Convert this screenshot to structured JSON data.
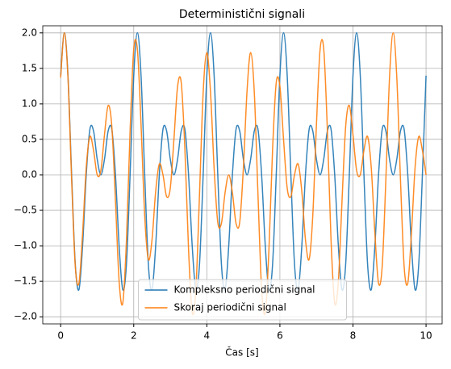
{
  "chart_data": {
    "type": "line",
    "title": "Deterministični signali",
    "x_label": "Čas [s]",
    "x": [
      0,
      0.1,
      0.2,
      0.3,
      0.4,
      0.5,
      0.6,
      0.7,
      0.8,
      0.9,
      1,
      1.1,
      1.2,
      1.3,
      1.4,
      1.5,
      1.6,
      1.7,
      1.8,
      1.9,
      2,
      2.1,
      2.2,
      2.3,
      2.4,
      2.5,
      2.6,
      2.7,
      2.8,
      2.9,
      3,
      3.1,
      3.2,
      3.3,
      3.4,
      3.5,
      3.6,
      3.7,
      3.8,
      3.9,
      4,
      4.1,
      4.2,
      4.3,
      4.4,
      4.5,
      4.6,
      4.7,
      4.8,
      4.9,
      5,
      5.1,
      5.2,
      5.3,
      5.4,
      5.5,
      5.6,
      5.7,
      5.8,
      5.9,
      6,
      6.1,
      6.2,
      6.3,
      6.4,
      6.5,
      6.6,
      6.7,
      6.8,
      6.9,
      7,
      7.1,
      7.2,
      7.3,
      7.4,
      7.5,
      7.6,
      7.7,
      7.8,
      7.9,
      8,
      8.1,
      8.2,
      8.3,
      8.4,
      8.5,
      8.6,
      8.7,
      8.8,
      8.9,
      9,
      9.1,
      9.2,
      9.3,
      9.4,
      9.5,
      9.6,
      9.7,
      9.8,
      9.9,
      10
    ],
    "series": [
      {
        "name": "Kompleksno periodični signal",
        "color": "#1f77b4",
        "values": [
          1.397,
          2,
          1.397,
          0,
          -1.26,
          -1.618,
          -1,
          0,
          0.642,
          0.618,
          0.221,
          0,
          0.221,
          0.618,
          0.642,
          0,
          -1,
          -1.618,
          -1.26,
          0,
          1.397,
          2,
          1.397,
          0,
          -1.26,
          -1.618,
          -1,
          0,
          0.642,
          0.618,
          0.221,
          0,
          0.221,
          0.618,
          0.642,
          0,
          -1,
          -1.618,
          -1.26,
          0,
          1.397,
          2,
          1.397,
          0,
          -1.26,
          -1.618,
          -1,
          0,
          0.642,
          0.618,
          0.221,
          0,
          0.221,
          0.618,
          0.642,
          0,
          -1,
          -1.618,
          -1.26,
          0,
          1.397,
          2,
          1.397,
          0,
          -1.26,
          -1.618,
          -1,
          0,
          0.642,
          0.618,
          0.221,
          0,
          0.221,
          0.618,
          0.642,
          0,
          -1,
          -1.618,
          -1.26,
          0,
          1.397,
          2,
          1.397,
          0,
          -1.26,
          -1.618,
          -1,
          0,
          0.642,
          0.618,
          0.221,
          0,
          0.221,
          0.618,
          0.642,
          0,
          -1,
          -1.618,
          -1.26,
          0,
          1.397
        ]
      },
      {
        "name": "Skoraj periodični signal",
        "color": "#ff7f0e",
        "values": [
          1.368,
          2,
          1.368,
          -0.066,
          -1.287,
          -1.528,
          -0.826,
          0.105,
          0.539,
          0.344,
          0,
          0.06,
          0.567,
          0.978,
          0.681,
          -0.371,
          -1.5,
          -1.807,
          -0.925,
          0.618,
          1.77,
          1.766,
          0.704,
          -0.574,
          -1.192,
          -0.914,
          -0.234,
          0.152,
          0,
          -0.307,
          -0.189,
          0.5,
          1.247,
          1.299,
          0.36,
          -1.051,
          -1.94,
          -1.618,
          -0.274,
          1.157,
          1.723,
          1.174,
          0.09,
          -0.669,
          -0.684,
          -0.25,
          0,
          -0.25,
          -0.684,
          -0.669,
          0.09,
          1.174,
          1.723,
          1.157,
          -0.274,
          -1.618,
          -1.94,
          -1.051,
          0.36,
          1.299,
          1.247,
          0.5,
          -0.189,
          -0.307,
          0,
          0.152,
          -0.234,
          -0.914,
          -1.192,
          -0.574,
          0.704,
          1.766,
          1.77,
          0.618,
          -0.925,
          -1.807,
          -1.5,
          -0.371,
          0.681,
          0.978,
          0.567,
          0.06,
          0,
          0.344,
          0.539,
          0.105,
          -0.826,
          -1.528,
          -1.287,
          -0.066,
          1.368,
          2,
          1.368,
          -0.066,
          -1.287,
          -1.528,
          -0.826,
          0.105,
          0.539,
          0.344,
          0
        ]
      }
    ],
    "xlim": [
      -0.49,
      10.44
    ],
    "ylim": [
      -2.1,
      2.1
    ],
    "xticks": [
      0,
      2,
      4,
      6,
      8,
      10
    ],
    "yticks": [
      {
        "value": -2,
        "label": "−2.0"
      },
      {
        "value": -1.5,
        "label": "−1.5"
      },
      {
        "value": -1,
        "label": "−1.0"
      },
      {
        "value": -0.5,
        "label": "−0.5"
      },
      {
        "value": 0,
        "label": "0.0"
      },
      {
        "value": 0.5,
        "label": "0.5"
      },
      {
        "value": 1,
        "label": "1.0"
      },
      {
        "value": 1.5,
        "label": "1.5"
      },
      {
        "value": 2,
        "label": "2.0"
      }
    ],
    "grid": true,
    "legend": "lower center"
  }
}
